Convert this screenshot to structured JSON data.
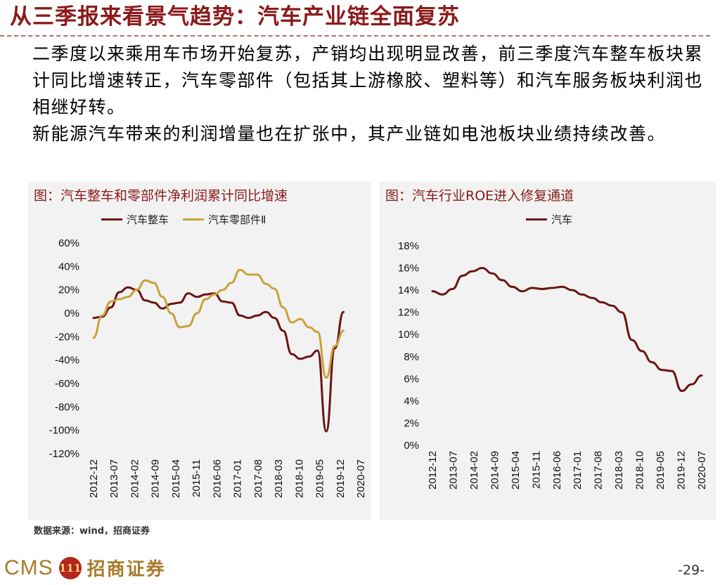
{
  "slide": {
    "title": "从三季报来看景气趋势：汽车产业链全面复苏",
    "paragraphs": [
      "二季度以来乘用车市场开始复苏，产销均出现明显改善，前三季度汽车整车板块累计同比增速转正，汽车零部件（包括其上游橡胶、塑料等）和汽车服务板块利润也相继好转。",
      "新能源汽车带来的利润增量也在扩张中，其产业链如电池板块业绩持续改善。"
    ],
    "source": "数据来源：wind，招商证券",
    "page_number": "-29-"
  },
  "footer": {
    "logo_text": "CMS",
    "logo_badge": "111",
    "company_name": "招商证券"
  },
  "colors": {
    "title": "#8B1A1A",
    "series_dark": "#6b1414",
    "series_gold": "#c9a23b",
    "panel_bg": "#f2f2f2"
  },
  "chart_data": [
    {
      "type": "line",
      "title": "图：汽车整车和零部件净利润累计同比增速",
      "x_ticks": [
        "2012-12",
        "2013-07",
        "2014-02",
        "2014-09",
        "2015-04",
        "2015-11",
        "2016-06",
        "2017-01",
        "2017-08",
        "2018-03",
        "2018-10",
        "2019-05",
        "2019-12",
        "2020-07"
      ],
      "x": [
        "2012-12",
        "2013-03",
        "2013-06",
        "2013-09",
        "2013-12",
        "2014-03",
        "2014-06",
        "2014-09",
        "2014-12",
        "2015-03",
        "2015-06",
        "2015-09",
        "2015-12",
        "2016-03",
        "2016-06",
        "2016-09",
        "2016-12",
        "2017-03",
        "2017-06",
        "2017-09",
        "2017-12",
        "2018-03",
        "2018-06",
        "2018-09",
        "2018-12",
        "2019-03",
        "2019-06",
        "2019-09",
        "2019-12",
        "2020-03",
        "2020-06",
        "2020-09"
      ],
      "series": [
        {
          "name": "汽车整车",
          "color": "#6b1414",
          "values": [
            -4,
            -3,
            5,
            18,
            22,
            20,
            11,
            9,
            4,
            8,
            9,
            17,
            14,
            16,
            17,
            10,
            9,
            -2,
            -4,
            -2,
            1,
            -4,
            -15,
            -35,
            -39,
            -37,
            -32,
            -101,
            -30,
            1,
            null,
            null
          ]
        },
        {
          "name": "汽车零部件Ⅱ",
          "color": "#c9a23b",
          "values": [
            -21,
            -2,
            10,
            12,
            14,
            20,
            28,
            26,
            14,
            0,
            -12,
            -11,
            0,
            12,
            16,
            20,
            26,
            37,
            33,
            33,
            25,
            21,
            5,
            -8,
            -5,
            -12,
            -16,
            -55,
            -28,
            -15,
            null,
            null
          ]
        }
      ],
      "ylim": [
        -120,
        60
      ],
      "y_ticks": [
        "60%",
        "40%",
        "20%",
        "0%",
        "-20%",
        "-40%",
        "-60%",
        "-80%",
        "-100%",
        "-120%"
      ],
      "legend": "top"
    },
    {
      "type": "line",
      "title": "图：汽车行业ROE进入修复通道",
      "x_ticks": [
        "2012-12",
        "2013-07",
        "2014-02",
        "2014-09",
        "2015-04",
        "2015-11",
        "2016-06",
        "2017-01",
        "2017-08",
        "2018-03",
        "2018-10",
        "2019-05",
        "2019-12",
        "2020-07"
      ],
      "series": [
        {
          "name": "汽车",
          "color": "#6b1414",
          "values": [
            13.9,
            13.6,
            14.1,
            15.3,
            15.7,
            16.0,
            15.5,
            14.9,
            14.3,
            13.9,
            14.2,
            14.1,
            14.2,
            14.3,
            14.0,
            13.6,
            13.3,
            12.9,
            12.6,
            12.0,
            9.5,
            8.5,
            7.5,
            6.8,
            6.7,
            4.9,
            5.5,
            6.3
          ]
        }
      ],
      "ylim": [
        0,
        18
      ],
      "y_ticks": [
        "18%",
        "16%",
        "14%",
        "12%",
        "10%",
        "8%",
        "6%",
        "4%",
        "2%",
        "0%"
      ],
      "legend": "top"
    }
  ]
}
